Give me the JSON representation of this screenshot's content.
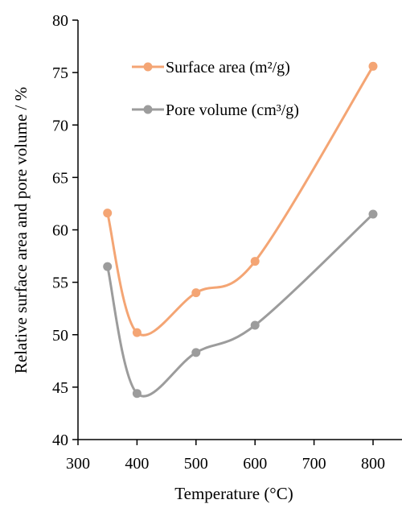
{
  "chart_data": {
    "type": "line",
    "title": "",
    "xlabel": "Temperature (°C)",
    "ylabel": "Relative  surface area and pore volume / %",
    "xlim": [
      300,
      850
    ],
    "ylim": [
      40,
      80
    ],
    "xticks": [
      300,
      400,
      500,
      600,
      700,
      800
    ],
    "yticks": [
      40,
      45,
      50,
      55,
      60,
      65,
      70,
      75,
      80
    ],
    "grid": false,
    "legend_position": "top-center",
    "series": [
      {
        "name": "Surface area (m²/g)",
        "color": "#F4A574",
        "x": [
          350,
          400,
          500,
          600,
          800
        ],
        "values": [
          61.6,
          50.2,
          54.0,
          57.0,
          75.6
        ]
      },
      {
        "name": "Pore volume (cm³/g)",
        "color": "#9C9C9C",
        "x": [
          350,
          400,
          500,
          600,
          800
        ],
        "values": [
          56.5,
          44.4,
          48.3,
          50.9,
          61.5
        ]
      }
    ]
  }
}
